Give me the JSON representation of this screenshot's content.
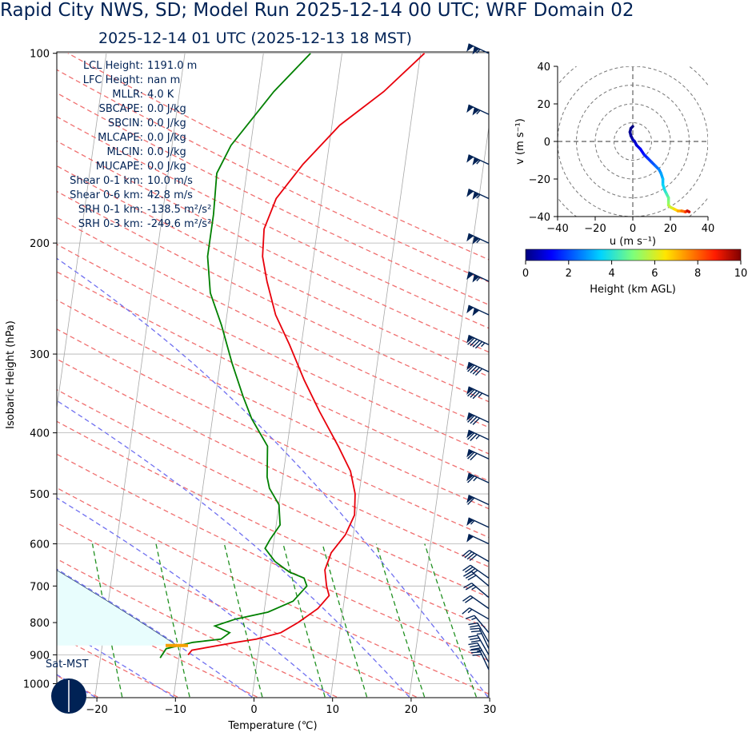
{
  "title": "Rapid City NWS, SD; Model Run 2025-12-14 00 UTC; WRF Domain 02",
  "subtitle": "2025-12-14 01 UTC  (2025-12-13 18 MST)",
  "day_label": "Sat-MST",
  "stats": [
    {
      "label": "LCL Height:",
      "value": "1191.0 m"
    },
    {
      "label": "LFC Height:",
      "value": "nan m"
    },
    {
      "label": "MLLR:",
      "value": "4.0 K"
    },
    {
      "label": "SBCAPE:",
      "value": "0.0 J/kg"
    },
    {
      "label": "SBCIN:",
      "value": "0.0 J/kg"
    },
    {
      "label": "MLCAPE:",
      "value": "0.0 J/kg"
    },
    {
      "label": "MLCIN:",
      "value": "0.0 J/kg"
    },
    {
      "label": "MUCAPE:",
      "value": "0.0 J/kg"
    },
    {
      "label": "Shear 0-1 km:",
      "value": "10.0 m/s"
    },
    {
      "label": "Shear 0-6 km:",
      "value": "42.8 m/s"
    },
    {
      "label": "SRH 0-1 km:",
      "value": "-138.5 m²/s²"
    },
    {
      "label": "SRH 0-3 km:",
      "value": "-249.6 m²/s²"
    }
  ],
  "colors": {
    "temperature": "#e8000b",
    "dewpoint": "#008000",
    "lcl": "#f5a000",
    "dry_adiabat": "#f07070",
    "moist_adiabat": "#6f6ff0",
    "mixing_ratio": "#209020",
    "text": "#002255"
  },
  "chart_data": [
    {
      "type": "line",
      "subtype": "skew-t",
      "xlabel": "Temperature (℃)",
      "ylabel": "Isobaric Height (hPa)",
      "xlim": [
        -25,
        30
      ],
      "ylim": [
        1050,
        100
      ],
      "x_ticks": [
        -20,
        -10,
        0,
        10,
        20,
        30
      ],
      "y_ticks": [
        100,
        200,
        300,
        400,
        500,
        600,
        700,
        800,
        900,
        1000
      ],
      "grid": true,
      "series": [
        {
          "key": "temperature",
          "points": [
            [
              -8.9,
              900
            ],
            [
              -8.5,
              885
            ],
            [
              -3.0,
              860
            ],
            [
              -0.5,
              850
            ],
            [
              2.5,
              830
            ],
            [
              4.5,
              800
            ],
            [
              6.8,
              760
            ],
            [
              8.0,
              725
            ],
            [
              7.5,
              700
            ],
            [
              7.0,
              660
            ],
            [
              7.5,
              620
            ],
            [
              9.0,
              580
            ],
            [
              9.8,
              540
            ],
            [
              9.5,
              500
            ],
            [
              8.5,
              460
            ],
            [
              6.5,
              420
            ],
            [
              3.5,
              370
            ],
            [
              1.0,
              330
            ],
            [
              -1.5,
              290
            ],
            [
              -3.8,
              260
            ],
            [
              -5.5,
              230
            ],
            [
              -6.5,
              210
            ],
            [
              -6.8,
              190
            ],
            [
              -5.8,
              170
            ],
            [
              -3.0,
              150
            ],
            [
              1.0,
              130
            ],
            [
              6.0,
              115
            ],
            [
              10.5,
              100
            ]
          ]
        },
        {
          "key": "dewpoint",
          "points": [
            [
              -12.4,
              910
            ],
            [
              -11.8,
              880
            ],
            [
              -8.5,
              860
            ],
            [
              -5.0,
              850
            ],
            [
              -4.0,
              830
            ],
            [
              -6.0,
              810
            ],
            [
              -3.5,
              790
            ],
            [
              0.5,
              770
            ],
            [
              3.5,
              740
            ],
            [
              5.0,
              700
            ],
            [
              4.5,
              680
            ],
            [
              2.5,
              665
            ],
            [
              0.5,
              640
            ],
            [
              -1.0,
              610
            ],
            [
              -0.5,
              590
            ],
            [
              0.5,
              560
            ],
            [
              0.0,
              520
            ],
            [
              -1.5,
              490
            ],
            [
              -2.0,
              470
            ],
            [
              -2.5,
              420
            ],
            [
              -5.0,
              380
            ],
            [
              -6.5,
              350
            ],
            [
              -8.5,
              310
            ],
            [
              -10.5,
              270
            ],
            [
              -12.5,
              240
            ],
            [
              -13.5,
              210
            ],
            [
              -13.5,
              180
            ],
            [
              -13.8,
              155
            ],
            [
              -12.5,
              140
            ],
            [
              -8.0,
              115
            ],
            [
              -4.0,
              100
            ]
          ]
        }
      ],
      "lcl_marker": {
        "t": -10.5,
        "p": 870
      },
      "wind_barbs": [
        {
          "p": 100,
          "spd": 105,
          "dir": 295
        },
        {
          "p": 125,
          "spd": 105,
          "dir": 295
        },
        {
          "p": 150,
          "spd": 105,
          "dir": 295
        },
        {
          "p": 170,
          "spd": 105,
          "dir": 295
        },
        {
          "p": 200,
          "spd": 105,
          "dir": 295
        },
        {
          "p": 230,
          "spd": 105,
          "dir": 295
        },
        {
          "p": 260,
          "spd": 100,
          "dir": 295
        },
        {
          "p": 290,
          "spd": 95,
          "dir": 295
        },
        {
          "p": 320,
          "spd": 90,
          "dir": 295
        },
        {
          "p": 350,
          "spd": 85,
          "dir": 295
        },
        {
          "p": 385,
          "spd": 80,
          "dir": 295
        },
        {
          "p": 410,
          "spd": 75,
          "dir": 295
        },
        {
          "p": 440,
          "spd": 70,
          "dir": 295
        },
        {
          "p": 480,
          "spd": 65,
          "dir": 295
        },
        {
          "p": 520,
          "spd": 60,
          "dir": 295
        },
        {
          "p": 565,
          "spd": 55,
          "dir": 295
        },
        {
          "p": 600,
          "spd": 50,
          "dir": 295
        },
        {
          "p": 640,
          "spd": 40,
          "dir": 300
        },
        {
          "p": 680,
          "spd": 35,
          "dir": 305
        },
        {
          "p": 700,
          "spd": 30,
          "dir": 310
        },
        {
          "p": 730,
          "spd": 25,
          "dir": 310
        },
        {
          "p": 760,
          "spd": 20,
          "dir": 305
        },
        {
          "p": 790,
          "spd": 15,
          "dir": 300
        },
        {
          "p": 830,
          "spd": 15,
          "dir": 320
        },
        {
          "p": 860,
          "spd": 20,
          "dir": 330
        },
        {
          "p": 880,
          "spd": 25,
          "dir": 335
        },
        {
          "p": 900,
          "spd": 30,
          "dir": 330
        },
        {
          "p": 925,
          "spd": 35,
          "dir": 330
        },
        {
          "p": 950,
          "spd": 30,
          "dir": 335
        }
      ],
      "moon_icon": "moon-phase-icon"
    },
    {
      "type": "line",
      "subtype": "hodograph",
      "xlabel": "u (m s⁻¹)",
      "ylabel": "v (m s⁻¹)",
      "xlim": [
        -40,
        40
      ],
      "ylim": [
        -40,
        40
      ],
      "ticks": [
        -40,
        -20,
        0,
        20,
        40
      ],
      "colorbar": {
        "label": "Height (km AGL)",
        "range": [
          0,
          10
        ],
        "ticks": [
          0,
          2,
          4,
          6,
          8,
          10
        ]
      },
      "points": [
        [
          0,
          8,
          0.0
        ],
        [
          -1,
          7,
          0.1
        ],
        [
          -1.5,
          5,
          0.2
        ],
        [
          -1,
          3,
          0.3
        ],
        [
          0,
          1,
          0.5
        ],
        [
          1,
          0,
          0.7
        ],
        [
          2,
          -2,
          0.9
        ],
        [
          4,
          -4,
          1.2
        ],
        [
          6,
          -7,
          1.5
        ],
        [
          8,
          -9,
          1.8
        ],
        [
          10,
          -11,
          2.1
        ],
        [
          12,
          -13,
          2.4
        ],
        [
          14,
          -15,
          2.7
        ],
        [
          15,
          -17,
          3.0
        ],
        [
          16,
          -20,
          3.3
        ],
        [
          16,
          -23,
          3.6
        ],
        [
          17,
          -26,
          4.0
        ],
        [
          18,
          -28,
          4.4
        ],
        [
          19,
          -30,
          4.8
        ],
        [
          19,
          -32,
          5.2
        ],
        [
          19,
          -34,
          5.6
        ],
        [
          20,
          -35,
          6.0
        ],
        [
          22,
          -36,
          6.6
        ],
        [
          24,
          -37,
          7.2
        ],
        [
          26,
          -37,
          7.8
        ],
        [
          28,
          -37.5,
          8.5
        ],
        [
          29,
          -37,
          9.3
        ],
        [
          30,
          -37.5,
          10.0
        ]
      ]
    }
  ]
}
